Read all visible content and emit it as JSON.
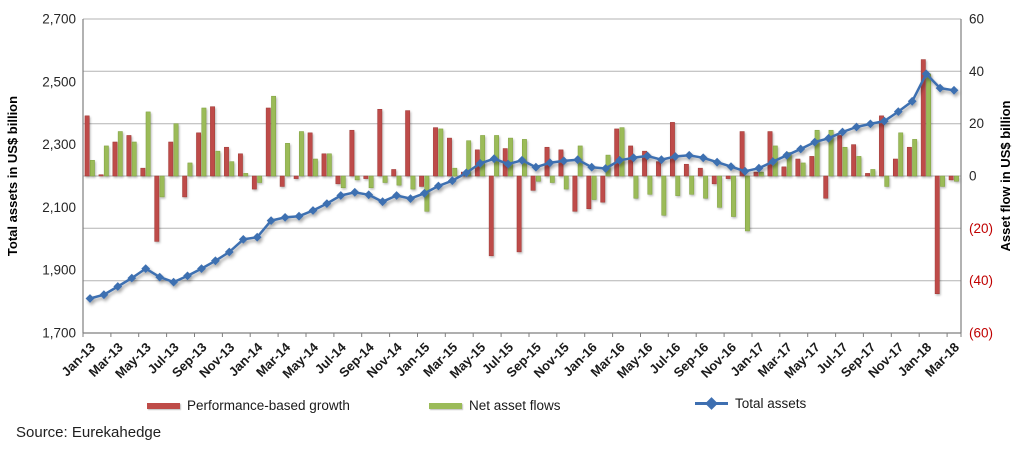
{
  "chart_data": {
    "type": "combo-bar-line",
    "months": [
      "Jan-13",
      "Feb-13",
      "Mar-13",
      "Apr-13",
      "May-13",
      "Jun-13",
      "Jul-13",
      "Aug-13",
      "Sep-13",
      "Oct-13",
      "Nov-13",
      "Dec-13",
      "Jan-14",
      "Feb-14",
      "Mar-14",
      "Apr-14",
      "May-14",
      "Jun-14",
      "Jul-14",
      "Aug-14",
      "Sep-14",
      "Oct-14",
      "Nov-14",
      "Dec-14",
      "Jan-15",
      "Feb-15",
      "Mar-15",
      "Apr-15",
      "May-15",
      "Jun-15",
      "Jul-15",
      "Aug-15",
      "Sep-15",
      "Oct-15",
      "Nov-15",
      "Dec-15",
      "Jan-16",
      "Feb-16",
      "Mar-16",
      "Apr-16",
      "May-16",
      "Jun-16",
      "Jul-16",
      "Aug-16",
      "Sep-16",
      "Oct-16",
      "Nov-16",
      "Dec-16",
      "Jan-17",
      "Feb-17",
      "Mar-17",
      "Apr-17",
      "May-17",
      "Jun-17",
      "Jul-17",
      "Aug-17",
      "Sep-17",
      "Oct-17",
      "Nov-17",
      "Dec-17",
      "Jan-18",
      "Feb-18",
      "Mar-18"
    ],
    "x_label_step": 2,
    "series": [
      {
        "name": "Performance-based growth",
        "type": "bar",
        "axis": "right",
        "color": "#BE4B48",
        "edge_color": "#9E3835",
        "values": [
          23,
          0.5,
          13,
          15.5,
          3,
          -25,
          13,
          -8,
          16.5,
          26.5,
          11,
          8.5,
          -5,
          26,
          -4,
          -1,
          16.5,
          8.5,
          -3,
          17.5,
          -1,
          25.5,
          2.5,
          25,
          -4,
          18.5,
          14.5,
          1.5,
          10,
          -30.5,
          10.5,
          -29,
          -5.5,
          11,
          10,
          -13.5,
          -12.5,
          -10,
          18,
          11.5,
          9.5,
          5.5,
          20.5,
          4.5,
          3,
          -3,
          -1,
          17,
          1.5,
          17,
          3.5,
          6.5,
          7.5,
          -8.5,
          15.5,
          12,
          1,
          23,
          6.5,
          11,
          44.5,
          -45,
          -1.5
        ]
      },
      {
        "name": "Net asset flows",
        "type": "bar",
        "axis": "right",
        "color": "#9BBB59",
        "edge_color": "#7EA03E",
        "values": [
          6,
          11.5,
          17,
          13,
          24.5,
          -8,
          20,
          5,
          26,
          9.5,
          5.5,
          1,
          -2.5,
          30.5,
          12.5,
          17,
          6.5,
          8.5,
          -4.5,
          -1.5,
          -4.5,
          -2.5,
          -3.5,
          -5,
          -13.5,
          18,
          3,
          13.5,
          15.5,
          15.5,
          14.5,
          14,
          -2,
          -2.5,
          -5,
          11.5,
          -9,
          8,
          18.5,
          -8.5,
          -7,
          -15,
          -7.5,
          -7,
          -8.5,
          -12,
          -15.5,
          -21,
          1.5,
          11.5,
          9,
          5,
          17.5,
          17.5,
          11,
          7.5,
          2.5,
          -4,
          16.5,
          14,
          39,
          -4,
          -2
        ]
      },
      {
        "name": "Total assets",
        "type": "line",
        "axis": "left",
        "color": "#3E6FB1",
        "values": [
          1810,
          1822,
          1848,
          1875,
          1905,
          1878,
          1862,
          1882,
          1905,
          1930,
          1958,
          1998,
          2005,
          2058,
          2068,
          2072,
          2090,
          2112,
          2138,
          2148,
          2140,
          2118,
          2138,
          2128,
          2145,
          2168,
          2185,
          2210,
          2240,
          2255,
          2238,
          2250,
          2228,
          2242,
          2248,
          2252,
          2228,
          2224,
          2250,
          2258,
          2264,
          2252,
          2262,
          2266,
          2258,
          2244,
          2230,
          2215,
          2225,
          2246,
          2266,
          2286,
          2308,
          2320,
          2340,
          2356,
          2366,
          2375,
          2405,
          2438,
          2525,
          2480,
          2473
        ]
      }
    ],
    "left_axis": {
      "title": "Total assets in US$ billion",
      "min": 1700,
      "max": 2700,
      "ticks": [
        "2,700",
        "2,500",
        "2,300",
        "2,100",
        "1,900",
        "1,700"
      ],
      "tick_values": [
        2700,
        2500,
        2300,
        2100,
        1900,
        1700
      ]
    },
    "right_axis": {
      "title": "Asset flow in US$ billion",
      "min": -60,
      "max": 60,
      "ticks": [
        "60",
        "40",
        "20",
        "0",
        "(20)",
        "(40)",
        "(60)"
      ],
      "tick_values": [
        60,
        40,
        20,
        0,
        -20,
        -40,
        -60
      ],
      "negative_tick_color": "#C00000"
    },
    "grid": true,
    "legend_position": "bottom"
  },
  "source": "Source: Eurekahedge"
}
